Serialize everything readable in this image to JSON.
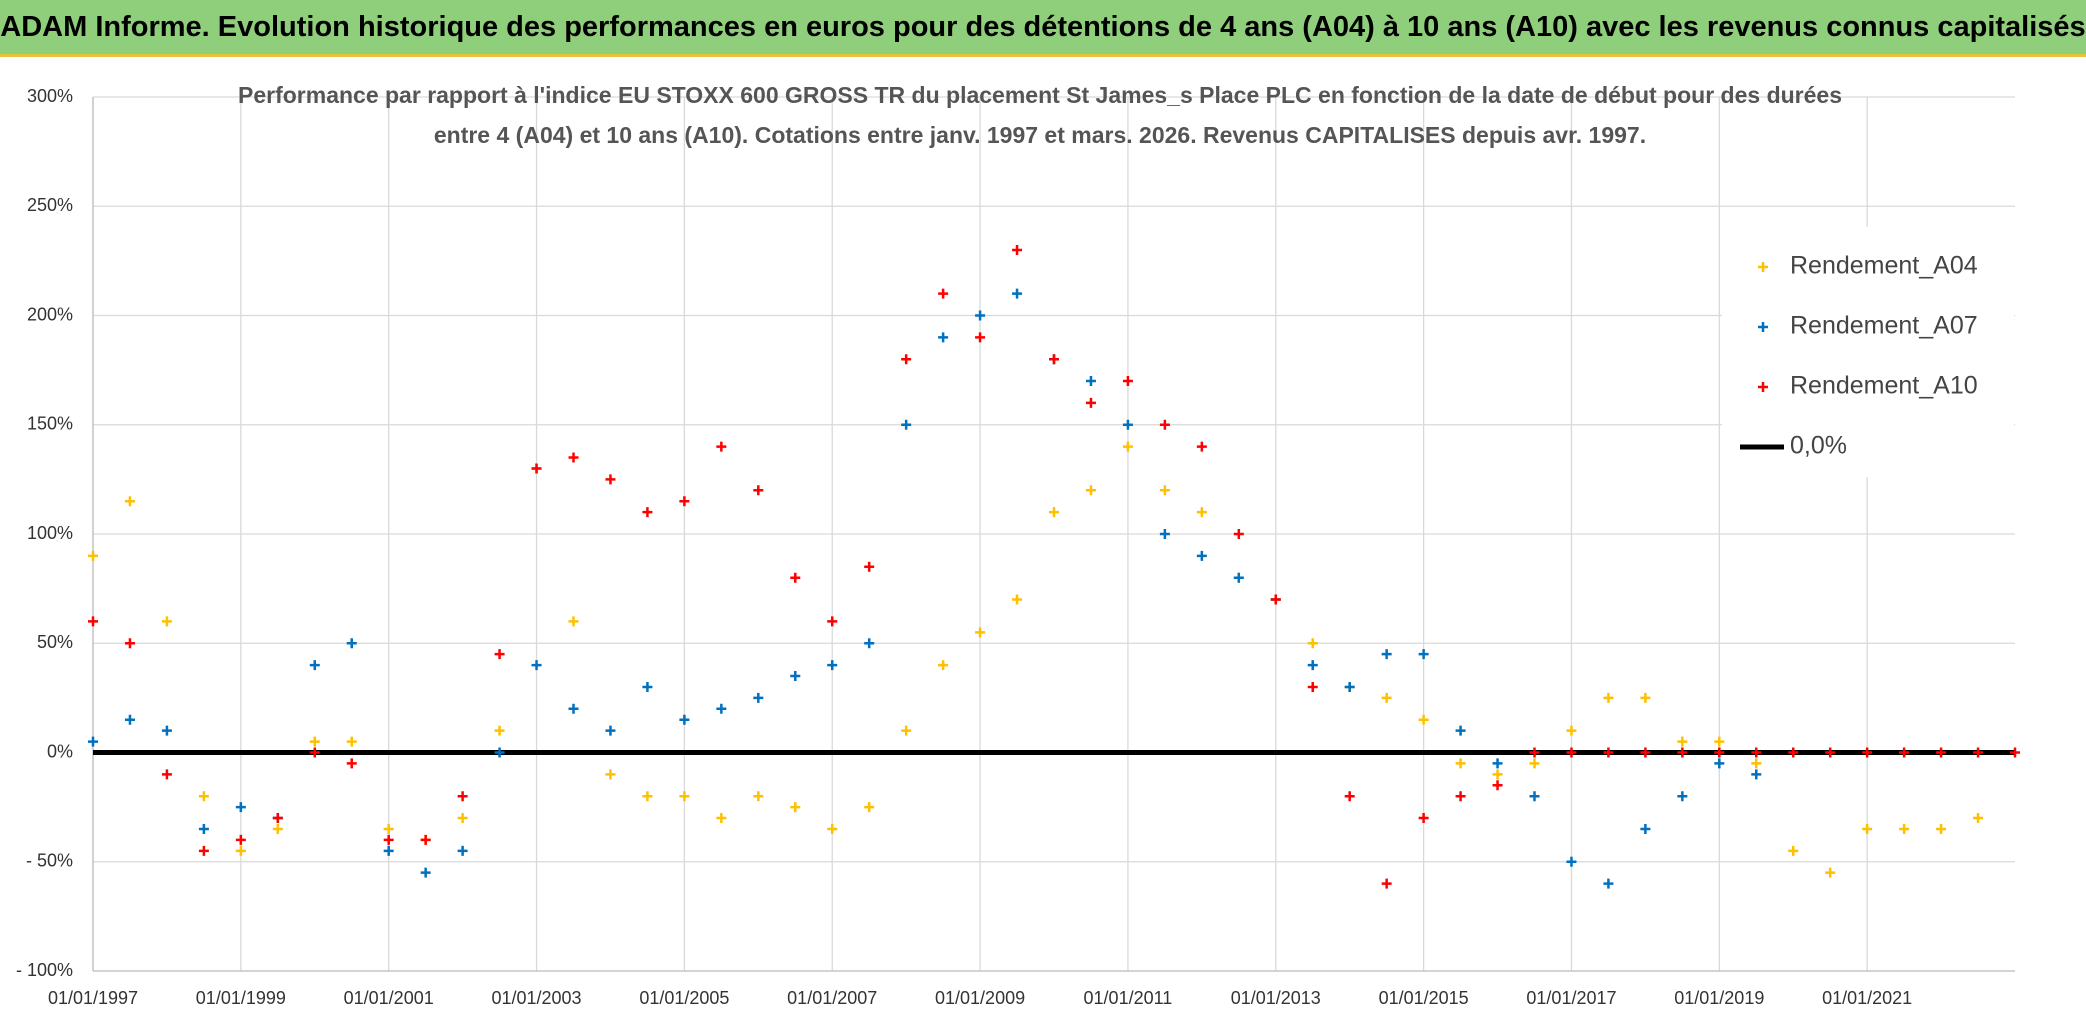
{
  "header": {
    "title": "ADAM Informe. Evolution historique des performances en euros pour des détentions de 4 ans (A04) à 10 ans (A10) avec les revenus connus capitalisés"
  },
  "chart_data": {
    "type": "scatter",
    "title_lines": [
      "Performance par rapport à l'indice EU STOXX 600 GROSS TR  du placement St James_s Place PLC en fonction de la date de début pour des durées",
      "entre 4 (A04) et 10 ans (A10). Cotations entre janv. 1997 et mars. 2026. Revenus CAPITALISES depuis avr. 1997."
    ],
    "xlim": [
      "01/01/1997",
      "01/01/2023"
    ],
    "xticks": [
      "01/01/1997",
      "01/01/1999",
      "01/01/2001",
      "01/01/2003",
      "01/01/2005",
      "01/01/2007",
      "01/01/2009",
      "01/01/2011",
      "01/01/2013",
      "01/01/2015",
      "01/01/2017",
      "01/01/2019",
      "01/01/2021"
    ],
    "ylim": [
      -100,
      300
    ],
    "yticks": [
      {
        "value": -100,
        "label": "- 100%"
      },
      {
        "value": -50,
        "label": "- 50%"
      },
      {
        "value": 0,
        "label": "0%"
      },
      {
        "value": 50,
        "label": "50%"
      },
      {
        "value": 100,
        "label": "100%"
      },
      {
        "value": 150,
        "label": "150%"
      },
      {
        "value": 200,
        "label": "200%"
      },
      {
        "value": 250,
        "label": "250%"
      },
      {
        "value": 300,
        "label": "300%"
      }
    ],
    "grid": true,
    "legend": "upper right",
    "reference_line": {
      "name": "0,0%",
      "value": 0,
      "color": "#000000"
    },
    "series": [
      {
        "name": "Rendement_A04",
        "color": "#ffc000",
        "x": [
          "01/01/1997",
          "01/07/1997",
          "01/01/1998",
          "01/07/1998",
          "01/01/1999",
          "01/07/1999",
          "01/01/2000",
          "01/07/2000",
          "01/01/2001",
          "01/07/2001",
          "01/01/2002",
          "01/07/2002",
          "01/01/2003",
          "01/07/2003",
          "01/01/2004",
          "01/07/2004",
          "01/01/2005",
          "01/07/2005",
          "01/01/2006",
          "01/07/2006",
          "01/01/2007",
          "01/07/2007",
          "01/01/2008",
          "01/07/2008",
          "01/01/2009",
          "01/07/2009",
          "01/01/2010",
          "01/07/2010",
          "01/01/2011",
          "01/07/2011",
          "01/01/2012",
          "01/07/2012",
          "01/01/2013",
          "01/07/2013",
          "01/01/2014",
          "01/07/2014",
          "01/01/2015",
          "01/07/2015",
          "01/01/2016",
          "01/07/2016",
          "01/01/2017",
          "01/07/2017",
          "01/01/2018",
          "01/07/2018",
          "01/01/2019",
          "01/07/2019",
          "01/01/2020",
          "01/07/2020",
          "01/01/2021",
          "01/07/2021",
          "01/01/2022",
          "01/07/2022"
        ],
        "values": [
          90,
          115,
          60,
          -20,
          -45,
          -35,
          5,
          5,
          -35,
          -40,
          -30,
          10,
          130,
          60,
          -10,
          -20,
          -20,
          -30,
          -20,
          -25,
          -35,
          -25,
          10,
          40,
          55,
          70,
          110,
          120,
          140,
          120,
          110,
          80,
          70,
          50,
          30,
          25,
          15,
          -5,
          -10,
          -5,
          10,
          25,
          25,
          5,
          5,
          -5,
          -45,
          -55,
          -35,
          -35,
          -35,
          -30
        ]
      },
      {
        "name": "Rendement_A07",
        "color": "#0070c0",
        "x": [
          "01/01/1997",
          "01/07/1997",
          "01/01/1998",
          "01/07/1998",
          "01/01/1999",
          "01/07/1999",
          "01/01/2000",
          "01/07/2000",
          "01/01/2001",
          "01/07/2001",
          "01/01/2002",
          "01/07/2002",
          "01/01/2003",
          "01/07/2003",
          "01/01/2004",
          "01/07/2004",
          "01/01/2005",
          "01/07/2005",
          "01/01/2006",
          "01/07/2006",
          "01/01/2007",
          "01/07/2007",
          "01/01/2008",
          "01/07/2008",
          "01/01/2009",
          "01/07/2009",
          "01/01/2010",
          "01/07/2010",
          "01/01/2011",
          "01/07/2011",
          "01/01/2012",
          "01/07/2012",
          "01/01/2013",
          "01/07/2013",
          "01/01/2014",
          "01/07/2014",
          "01/01/2015",
          "01/07/2015",
          "01/01/2016",
          "01/07/2016",
          "01/01/2017",
          "01/07/2017",
          "01/01/2018",
          "01/07/2018",
          "01/01/2019",
          "01/07/2019"
        ],
        "values": [
          5,
          15,
          10,
          -35,
          -25,
          -30,
          40,
          50,
          -45,
          -55,
          -45,
          0,
          40,
          20,
          10,
          30,
          15,
          20,
          25,
          35,
          40,
          50,
          150,
          190,
          200,
          210,
          180,
          170,
          150,
          100,
          90,
          80,
          70,
          40,
          30,
          45,
          45,
          10,
          -5,
          -20,
          -50,
          -60,
          -35,
          -20,
          -5,
          -10
        ]
      },
      {
        "name": "Rendement_A10",
        "color": "#ff0000",
        "x": [
          "01/01/1997",
          "01/07/1997",
          "01/01/1998",
          "01/07/1998",
          "01/01/1999",
          "01/07/1999",
          "01/01/2000",
          "01/07/2000",
          "01/01/2001",
          "01/07/2001",
          "01/01/2002",
          "01/07/2002",
          "01/01/2003",
          "01/07/2003",
          "01/01/2004",
          "01/07/2004",
          "01/01/2005",
          "01/07/2005",
          "01/01/2006",
          "01/07/2006",
          "01/01/2007",
          "01/07/2007",
          "01/01/2008",
          "01/07/2008",
          "01/01/2009",
          "01/07/2009",
          "01/01/2010",
          "01/07/2010",
          "01/01/2011",
          "01/07/2011",
          "01/01/2012",
          "01/07/2012",
          "01/01/2013",
          "01/07/2013",
          "01/01/2014",
          "01/07/2014",
          "01/01/2015",
          "01/07/2015",
          "01/01/2016",
          "01/07/2016",
          "01/01/2017",
          "01/07/2017",
          "01/01/2018",
          "01/07/2018",
          "01/01/2019",
          "01/07/2019",
          "01/01/2020",
          "01/07/2020",
          "01/01/2021",
          "01/07/2021",
          "01/01/2022",
          "01/07/2022",
          "01/01/2023"
        ],
        "values": [
          60,
          50,
          -10,
          -45,
          -40,
          -30,
          0,
          -5,
          -40,
          -40,
          -20,
          45,
          130,
          135,
          125,
          110,
          115,
          140,
          120,
          80,
          60,
          85,
          180,
          210,
          190,
          230,
          180,
          160,
          170,
          150,
          140,
          100,
          70,
          30,
          -20,
          -60,
          -30,
          -20,
          -15,
          0,
          0,
          0,
          0,
          0,
          0,
          0,
          0,
          0,
          0,
          0,
          0,
          0,
          0
        ]
      }
    ]
  }
}
